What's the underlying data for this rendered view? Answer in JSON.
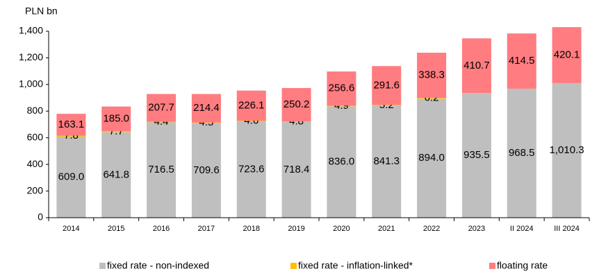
{
  "chart_data": {
    "type": "bar",
    "stacked": true,
    "y_label": "PLN bn",
    "categories": [
      "2014",
      "2015",
      "2016",
      "2017",
      "2018",
      "2019",
      "2020",
      "2021",
      "2022",
      "2023",
      "II 2024",
      "III 2024"
    ],
    "series": [
      {
        "name": "fixed rate - non-indexed",
        "color": "#bfbfbf",
        "values": [
          609.0,
          641.8,
          716.5,
          709.6,
          723.6,
          718.4,
          836.0,
          841.3,
          894.0,
          935.5,
          968.5,
          1010.3
        ],
        "value_labels": [
          "609.0",
          "641.8",
          "716.5",
          "709.6",
          "723.6",
          "718.4",
          "836.0",
          "841.3",
          "894.0",
          "935.5",
          "968.5",
          "1,010.3"
        ]
      },
      {
        "name": "fixed rate - inflation-linked*",
        "color": "#ffc000",
        "values": [
          7.8,
          7.7,
          4.4,
          4.5,
          4.6,
          4.8,
          4.9,
          5.2,
          6.2,
          0,
          0,
          0
        ],
        "value_labels": [
          "7.8",
          "7.7",
          "4.4",
          "4.5",
          "4.6",
          "4.8",
          "4.9",
          "5.2",
          "6.2",
          null,
          null,
          null
        ]
      },
      {
        "name": "floating rate",
        "color": "#ff7c80",
        "values": [
          163.1,
          185.0,
          207.7,
          214.4,
          226.1,
          250.2,
          256.6,
          291.6,
          338.3,
          410.7,
          414.5,
          420.1
        ],
        "value_labels": [
          "163.1",
          "185.0",
          "207.7",
          "214.4",
          "226.1",
          "250.2",
          "256.6",
          "291.6",
          "338.3",
          "410.7",
          "414.5",
          "420.1"
        ]
      }
    ],
    "ylim": [
      0,
      1400
    ],
    "yticks": [
      0,
      200,
      400,
      600,
      800,
      {
        "value": 1000,
        "label": "1,000"
      },
      {
        "value": 1200,
        "label": "1,200"
      },
      {
        "value": 1400,
        "label": "1,400"
      }
    ],
    "grid": false,
    "legend": "bottom"
  }
}
